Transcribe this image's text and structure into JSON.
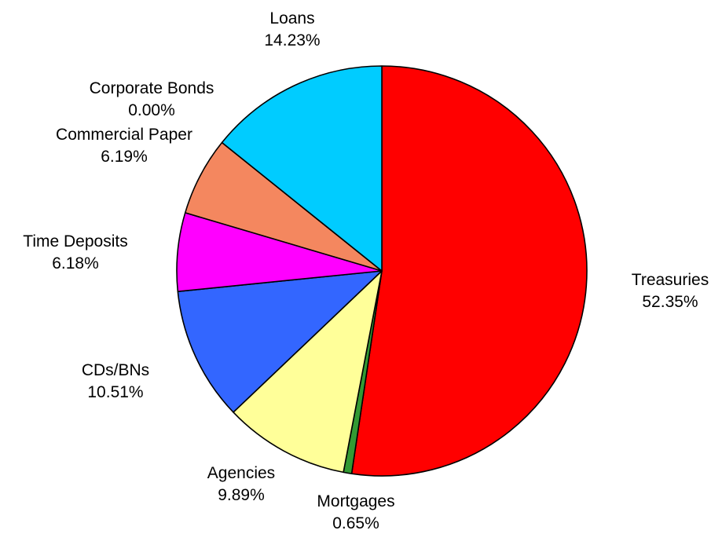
{
  "chart_data": {
    "type": "pie",
    "slices": [
      {
        "label": "Treasuries",
        "value": 52.35,
        "pct_text": "52.35%",
        "color": "#FF0000"
      },
      {
        "label": "Mortgages",
        "value": 0.65,
        "pct_text": "0.65%",
        "color": "#339933"
      },
      {
        "label": "Agencies",
        "value": 9.89,
        "pct_text": "9.89%",
        "color": "#FFFF99"
      },
      {
        "label": "CDs/BNs",
        "value": 10.51,
        "pct_text": "10.51%",
        "color": "#3366FF"
      },
      {
        "label": "Time Deposits",
        "value": 6.18,
        "pct_text": "6.18%",
        "color": "#FF00FF"
      },
      {
        "label": "Commercial Paper",
        "value": 6.19,
        "pct_text": "6.19%",
        "color": "#F4875F"
      },
      {
        "label": "Corporate Bonds",
        "value": 0.0,
        "pct_text": "0.00%",
        "color": "#993366"
      },
      {
        "label": "Loans",
        "value": 14.23,
        "pct_text": "14.23%",
        "color": "#00CCFF"
      }
    ],
    "start_angle": "12 o'clock",
    "direction": "clockwise",
    "legend": "none"
  }
}
